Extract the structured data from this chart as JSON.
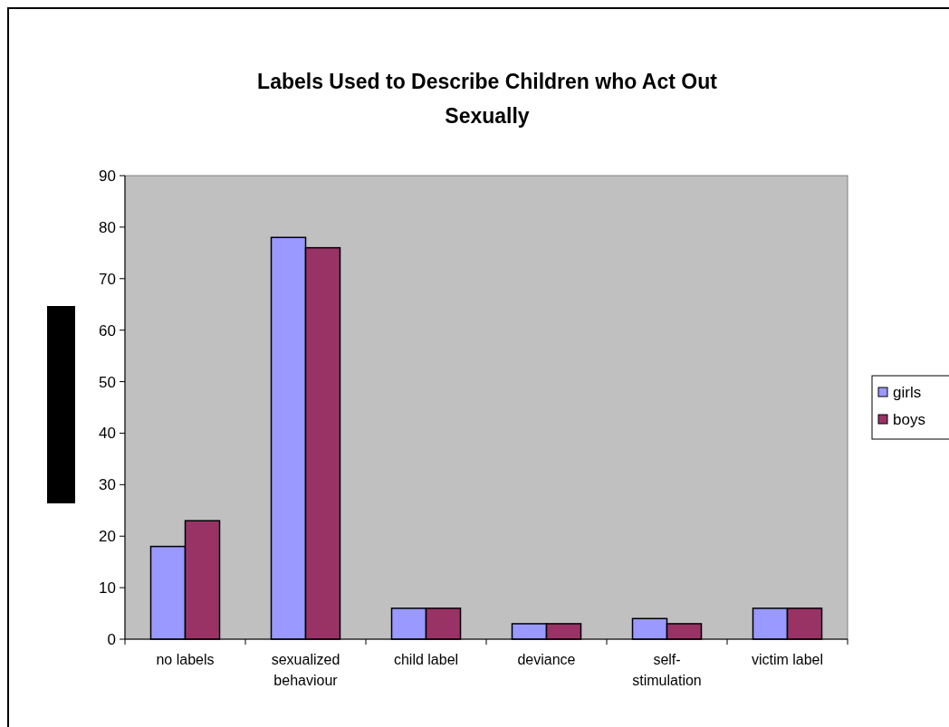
{
  "chart_data": {
    "type": "bar",
    "title": "Labels Used to Describe Children who Act Out Sexually",
    "categories": [
      "no labels",
      "sexualized behaviour",
      "child label",
      "deviance",
      "self-stimulation",
      "victim label"
    ],
    "series": [
      {
        "name": "girls",
        "color": "#9999ff",
        "values": [
          18,
          78,
          6,
          3,
          4,
          6
        ]
      },
      {
        "name": "boys",
        "color": "#993366",
        "values": [
          23,
          76,
          6,
          3,
          3,
          6
        ]
      }
    ],
    "ylim": [
      0,
      90
    ],
    "yticks": [
      0,
      10,
      20,
      30,
      40,
      50,
      60,
      70,
      80,
      90
    ],
    "grid": false,
    "legend": "right"
  }
}
